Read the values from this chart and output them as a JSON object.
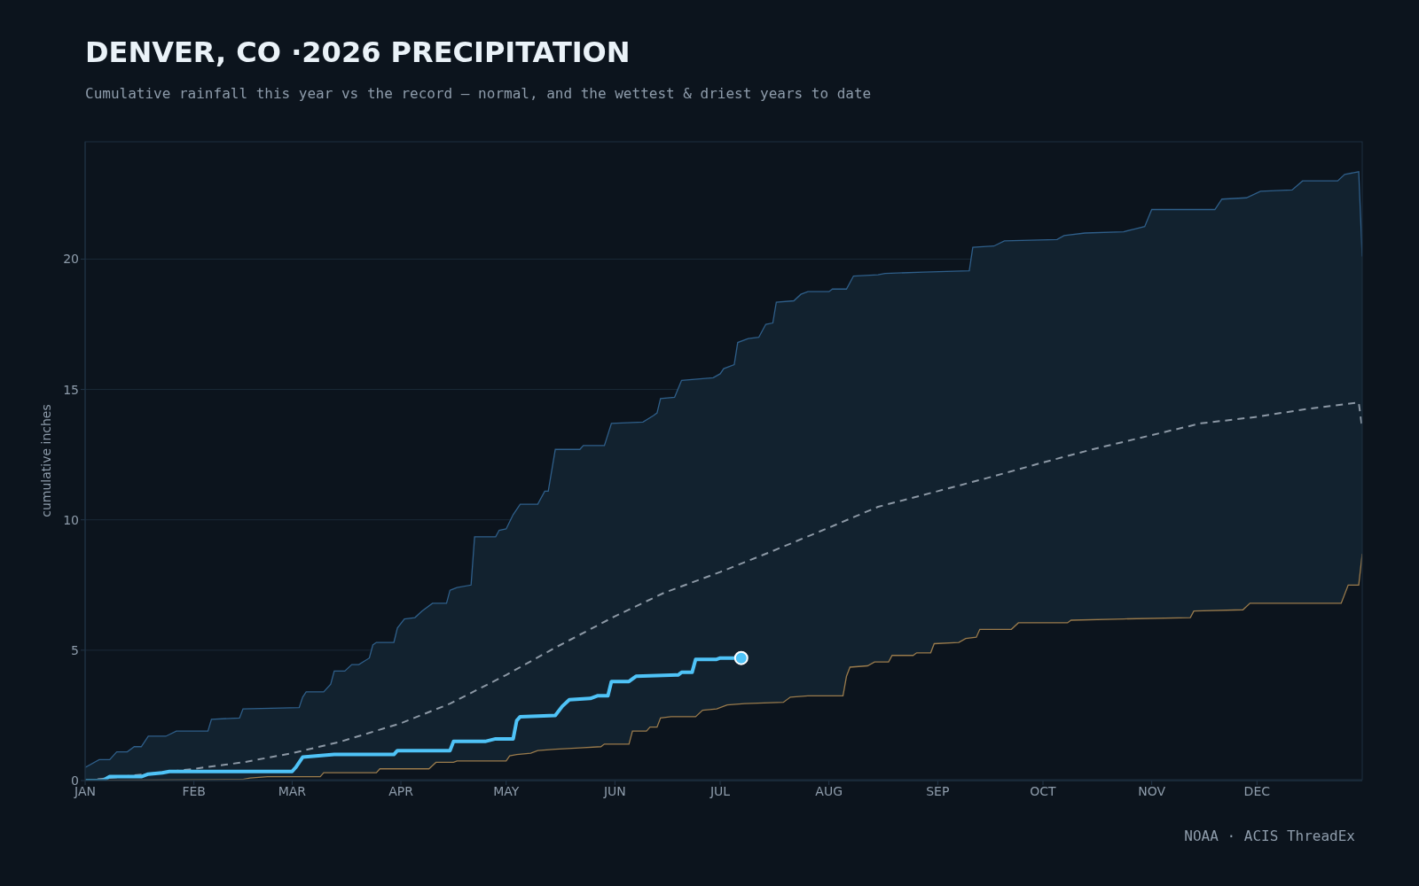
{
  "chart_data": {
    "type": "line",
    "title": "DENVER, CO ·2026 PRECIPITATION",
    "subtitle": "Cumulative rainfall this year vs the record — normal, and the wettest & driest years to date",
    "ylabel": "cumulative inches",
    "annotations": [
      "NOAA · ACIS ThreadEx"
    ],
    "xlim": [
      "--01-01",
      "--12-31"
    ],
    "xticks": [
      {
        "value": "--01-01",
        "label": "JAN"
      },
      {
        "value": "--02-01",
        "label": "FEB"
      },
      {
        "value": "--03-01",
        "label": "MAR"
      },
      {
        "value": "--04-01",
        "label": "APR"
      },
      {
        "value": "--05-01",
        "label": "MAY"
      },
      {
        "value": "--06-01",
        "label": "JUN"
      },
      {
        "value": "--07-01",
        "label": "JUL"
      },
      {
        "value": "--08-01",
        "label": "AUG"
      },
      {
        "value": "--09-01",
        "label": "SEP"
      },
      {
        "value": "--10-01",
        "label": "OCT"
      },
      {
        "value": "--11-01",
        "label": "NOV"
      },
      {
        "value": "--12-01",
        "label": "DEC"
      }
    ],
    "ylim": [
      0,
      24.5
    ],
    "yticks": [
      0,
      5,
      10,
      15,
      20
    ],
    "grid": "y",
    "series": [
      {
        "type": "area",
        "color": "#2f5f8a",
        "x": [
          "--01-01",
          "--01-05",
          "--01-08",
          "--01-10",
          "--01-13",
          "--01-15",
          "--01-17",
          "--01-19",
          "--01-24",
          "--01-27",
          "--02-05",
          "--02-06",
          "--02-14",
          "--02-15",
          "--03-03",
          "--03-04",
          "--03-05",
          "--03-10",
          "--03-12",
          "--03-13",
          "--03-16",
          "--03-18",
          "--03-20",
          "--03-23",
          "--03-24",
          "--03-25",
          "--03-30",
          "--03-31",
          "--04-02",
          "--04-05",
          "--04-07",
          "--04-10",
          "--04-14",
          "--04-15",
          "--04-17",
          "--04-21",
          "--04-22",
          "--04-28",
          "--04-29",
          "--05-01",
          "--05-03",
          "--05-05",
          "--05-10",
          "--05-12",
          "--05-13",
          "--05-15",
          "--05-22",
          "--05-23",
          "--05-29",
          "--05-31",
          "--06-09",
          "--06-12",
          "--06-13",
          "--06-14",
          "--06-18",
          "--06-20",
          "--06-29",
          "--07-01",
          "--07-02",
          "--07-05",
          "--07-06",
          "--07-09",
          "--07-12",
          "--07-14",
          "--07-16",
          "--07-17",
          "--07-22",
          "--07-24",
          "--07-26",
          "--08-01",
          "--08-02",
          "--08-06",
          "--08-08",
          "--08-15",
          "--08-17",
          "--08-28",
          "--09-10",
          "--09-11",
          "--09-17",
          "--09-20",
          "--10-05",
          "--10-07",
          "--10-13",
          "--10-24",
          "--10-27",
          "--10-30",
          "--11-01",
          "--11-19",
          "--11-21",
          "--11-28",
          "--12-02",
          "--12-11",
          "--12-14",
          "--12-24",
          "--12-26",
          "--12-30",
          "--12-31"
        ],
        "values": [
          0.5,
          0.8,
          0.8,
          1.1,
          1.1,
          1.3,
          1.3,
          1.7,
          1.7,
          1.9,
          1.9,
          2.35,
          2.4,
          2.75,
          2.8,
          3.2,
          3.4,
          3.4,
          3.7,
          4.2,
          4.2,
          4.45,
          4.45,
          4.7,
          5.2,
          5.3,
          5.3,
          5.85,
          6.2,
          6.25,
          6.5,
          6.8,
          6.8,
          7.3,
          7.4,
          7.5,
          9.35,
          9.35,
          9.6,
          9.65,
          10.2,
          10.6,
          10.6,
          11.1,
          11.1,
          12.7,
          12.7,
          12.85,
          12.85,
          13.7,
          13.75,
          14.0,
          14.1,
          14.65,
          14.7,
          15.35,
          15.45,
          15.6,
          15.8,
          15.95,
          16.8,
          16.95,
          17.0,
          17.5,
          17.55,
          18.35,
          18.4,
          18.65,
          18.75,
          18.75,
          18.85,
          18.85,
          19.35,
          19.4,
          19.45,
          19.5,
          19.55,
          20.45,
          20.5,
          20.7,
          20.75,
          20.9,
          21.0,
          21.05,
          21.15,
          21.25,
          21.9,
          21.9,
          22.3,
          22.35,
          22.6,
          22.65,
          23.0,
          23.0,
          23.25,
          23.35,
          20.1
        ]
      },
      {
        "type": "area",
        "color": "#9a7b4c",
        "x": [
          "--01-01",
          "--02-15",
          "--02-17",
          "--02-22",
          "--03-09",
          "--03-10",
          "--03-25",
          "--03-26",
          "--04-09",
          "--04-11",
          "--04-16",
          "--04-17",
          "--05-01",
          "--05-02",
          "--05-04",
          "--05-08",
          "--05-10",
          "--05-15",
          "--05-22",
          "--05-28",
          "--05-29",
          "--06-05",
          "--06-06",
          "--06-10",
          "--06-11",
          "--06-13",
          "--06-14",
          "--06-17",
          "--06-24",
          "--06-26",
          "--06-30",
          "--07-03",
          "--07-08",
          "--07-19",
          "--07-21",
          "--07-26",
          "--08-05",
          "--08-06",
          "--08-07",
          "--08-12",
          "--08-14",
          "--08-18",
          "--08-19",
          "--08-25",
          "--08-26",
          "--08-30",
          "--08-31",
          "--09-07",
          "--09-09",
          "--09-12",
          "--09-13",
          "--09-22",
          "--09-24",
          "--10-08",
          "--10-09",
          "--10-24",
          "--11-12",
          "--11-13",
          "--11-27",
          "--11-29",
          "--12-25",
          "--12-27",
          "--12-30",
          "--12-31"
        ],
        "values": [
          0,
          0.05,
          0.1,
          0.15,
          0.15,
          0.3,
          0.3,
          0.45,
          0.45,
          0.7,
          0.7,
          0.75,
          0.75,
          0.95,
          1.0,
          1.05,
          1.15,
          1.2,
          1.25,
          1.3,
          1.4,
          1.4,
          1.9,
          1.9,
          2.05,
          2.05,
          2.4,
          2.45,
          2.45,
          2.7,
          2.75,
          2.9,
          2.95,
          3.0,
          3.2,
          3.25,
          3.25,
          4.0,
          4.35,
          4.4,
          4.55,
          4.55,
          4.8,
          4.8,
          4.9,
          4.9,
          5.25,
          5.3,
          5.45,
          5.5,
          5.8,
          5.8,
          6.05,
          6.05,
          6.15,
          6.2,
          6.25,
          6.5,
          6.55,
          6.8,
          6.8,
          7.5,
          7.5,
          8.7
        ]
      },
      {
        "type": "line",
        "color": "#8c98a5",
        "line_style": "dashed",
        "x": [
          "--01-01",
          "--01-15",
          "--02-01",
          "--02-15",
          "--03-01",
          "--03-15",
          "--04-01",
          "--04-15",
          "--05-01",
          "--05-15",
          "--06-01",
          "--06-15",
          "--07-01",
          "--07-15",
          "--08-01",
          "--08-15",
          "--09-01",
          "--09-15",
          "--10-01",
          "--10-15",
          "--11-01",
          "--11-15",
          "--12-01",
          "--12-15",
          "--12-30",
          "--12-31"
        ],
        "values": [
          0,
          0.2,
          0.45,
          0.7,
          1.05,
          1.5,
          2.2,
          2.95,
          4.05,
          5.1,
          6.3,
          7.2,
          8.0,
          8.75,
          9.7,
          10.5,
          11.1,
          11.6,
          12.2,
          12.7,
          13.25,
          13.7,
          13.95,
          14.25,
          14.5,
          13.5
        ]
      },
      {
        "type": "line",
        "color": "#4fc3f7",
        "x": [
          "--01-01",
          "--01-06",
          "--01-08",
          "--01-17",
          "--01-19",
          "--01-23",
          "--01-25",
          "--03-01",
          "--03-02",
          "--03-04",
          "--03-13",
          "--03-30",
          "--03-31",
          "--04-15",
          "--04-16",
          "--04-25",
          "--04-28",
          "--05-03",
          "--05-04",
          "--05-05",
          "--05-15",
          "--05-17",
          "--05-19",
          "--05-25",
          "--05-27",
          "--05-30",
          "--05-31",
          "--06-05",
          "--06-07",
          "--06-19",
          "--06-20",
          "--06-23",
          "--06-24",
          "--06-30",
          "--07-01",
          "--07-07"
        ],
        "values": [
          0,
          0,
          0.15,
          0.15,
          0.25,
          0.3,
          0.35,
          0.35,
          0.5,
          0.9,
          1.0,
          1.0,
          1.15,
          1.15,
          1.5,
          1.5,
          1.6,
          1.6,
          2.3,
          2.45,
          2.5,
          2.85,
          3.1,
          3.15,
          3.25,
          3.25,
          3.8,
          3.8,
          4.0,
          4.05,
          4.15,
          4.15,
          4.65,
          4.65,
          4.7,
          4.7
        ]
      },
      {
        "type": "scatter",
        "color": "#4fc3f7",
        "marker": "circle",
        "x": [
          "--07-07"
        ],
        "values": [
          4.7
        ]
      }
    ]
  }
}
